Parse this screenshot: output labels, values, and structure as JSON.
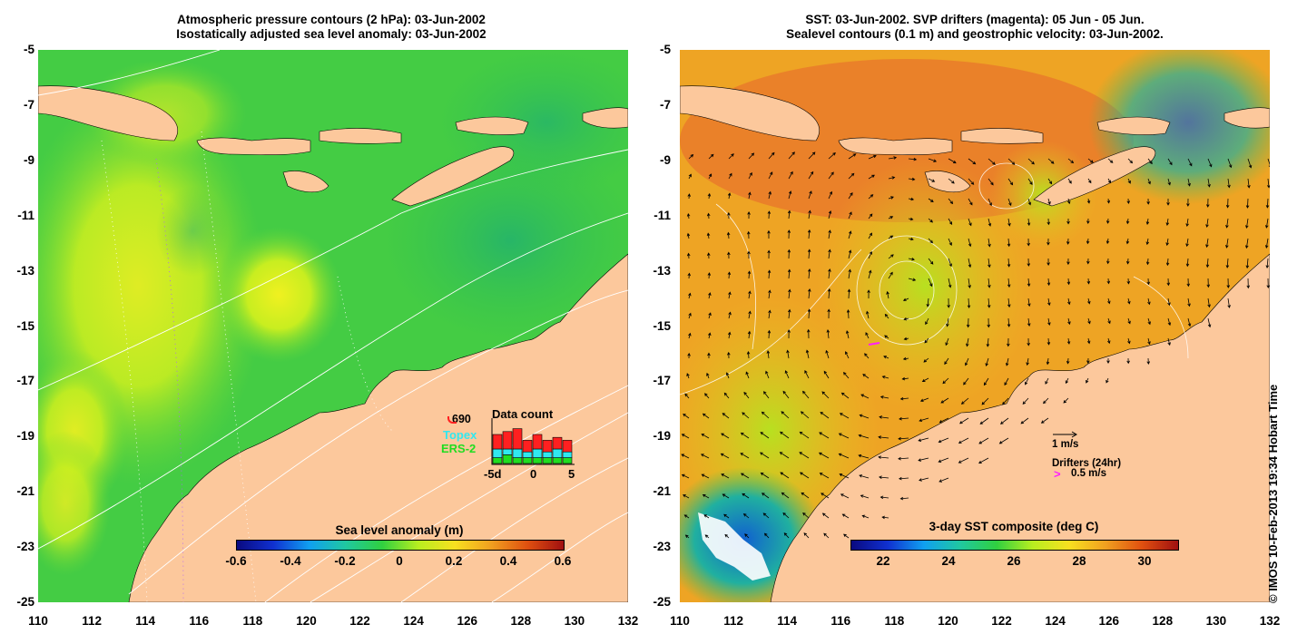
{
  "left_panel": {
    "title_line1": "Atmospheric pressure contours (2 hPa): 03-Jun-2002",
    "title_line2": "Isostatically adjusted sea level anomaly: 03-Jun-2002",
    "colorbar_label": "Sea level anomaly (m)",
    "colorbar_ticks": [
      "-0.6",
      "-0.4",
      "-0.2",
      "0",
      "0.2",
      "0.4",
      "0.6"
    ],
    "colorbar_range": [
      -0.6,
      0.6
    ],
    "inset": {
      "title": "Data count",
      "sat_690": "690",
      "sat_topex": "Topex",
      "sat_ers2": "ERS-2",
      "axis_ticks": [
        "-5d",
        "0",
        "5"
      ],
      "bar_values": [
        {
          "red": 5,
          "cyan": 3,
          "green": 2
        },
        {
          "red": 6,
          "cyan": 2,
          "green": 3
        },
        {
          "red": 7,
          "cyan": 3,
          "green": 2
        },
        {
          "red": 4,
          "cyan": 2,
          "green": 2
        },
        {
          "red": 5,
          "cyan": 3,
          "green": 2
        },
        {
          "red": 4,
          "cyan": 2,
          "green": 2
        },
        {
          "red": 4,
          "cyan": 3,
          "green": 2
        },
        {
          "red": 4,
          "cyan": 2,
          "green": 2
        }
      ],
      "colors": {
        "red": "#ff2020",
        "cyan": "#30e8f0",
        "green": "#20dd20"
      }
    }
  },
  "right_panel": {
    "title_line1": "SST: 03-Jun-2002. SVP drifters (magenta): 05 Jun - 05 Jun.",
    "title_line2": "Sealevel contours (0.1 m) and geostrophic velocity: 03-Jun-2002.",
    "colorbar_label": "3-day SST composite (deg C)",
    "colorbar_ticks": [
      "22",
      "24",
      "26",
      "28",
      "30"
    ],
    "colorbar_range": [
      21,
      31
    ],
    "legend_speed": "1 m/s",
    "legend_drifters": "Drifters (24hr)",
    "legend_drifter_speed": "0.5 m/s"
  },
  "axes": {
    "lat_ticks": [
      "-5",
      "-7",
      "-9",
      "-11",
      "-13",
      "-15",
      "-17",
      "-19",
      "-21",
      "-23",
      "-25"
    ],
    "lon_ticks": [
      "110",
      "112",
      "114",
      "116",
      "118",
      "120",
      "122",
      "124",
      "126",
      "128",
      "130",
      "132"
    ],
    "lat_range": [
      -25,
      -5
    ],
    "lon_range": [
      110,
      132
    ]
  },
  "copyright": "© IMOS 10-Feb-2013 19:34 Hobart Time",
  "colors": {
    "land": "#fcc89c",
    "sla_ocean": "#3ed040",
    "sst_ocean": "#f0a020",
    "magenta": "#ff20ff"
  }
}
